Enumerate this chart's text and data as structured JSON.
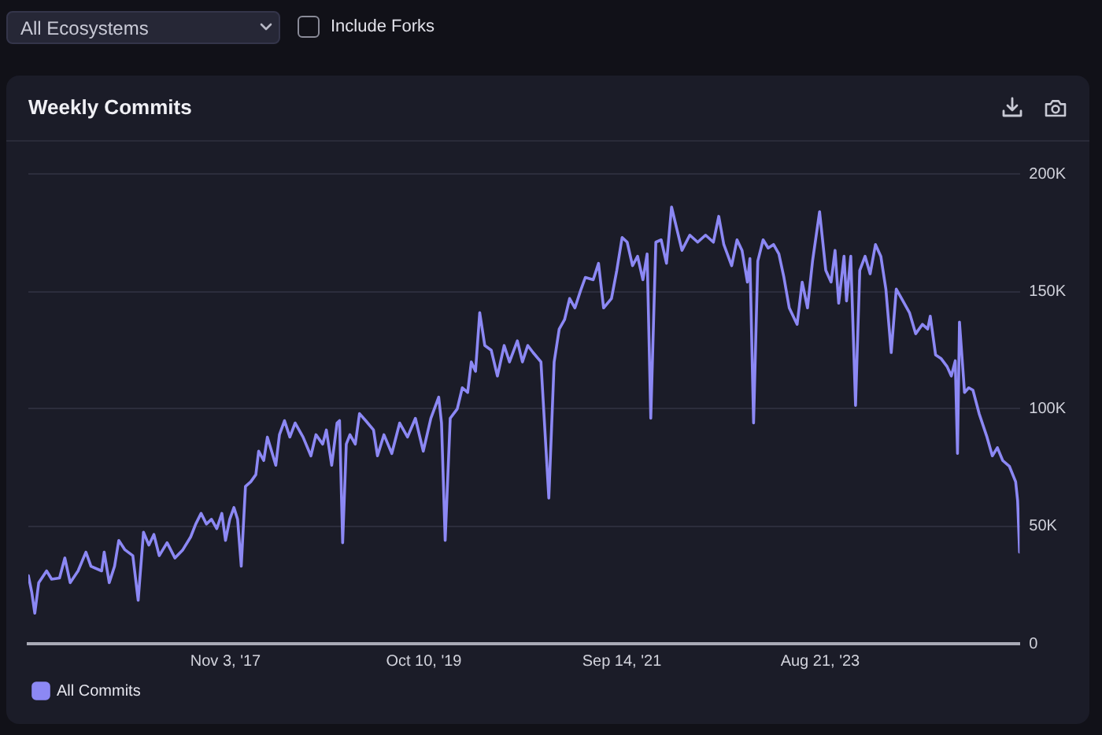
{
  "chart_data": {
    "type": "line",
    "title": "Weekly Commits",
    "annotations": [
      "All Ecosystems",
      "Include Forks"
    ],
    "x": [
      "2015-12-02",
      "2015-12-14",
      "2015-12-25",
      "2016-01-08",
      "2016-02-05",
      "2016-02-23",
      "2016-03-22",
      "2016-04-10",
      "2016-04-29",
      "2016-05-27",
      "2016-06-24",
      "2016-07-12",
      "2016-08-19",
      "2016-08-28",
      "2016-09-15",
      "2016-10-04",
      "2016-10-19",
      "2016-11-10",
      "2016-12-08",
      "2016-12-27",
      "2017-01-15",
      "2017-02-03",
      "2017-02-21",
      "2017-03-12",
      "2017-04-09",
      "2017-05-07",
      "2017-06-04",
      "2017-07-02",
      "2017-07-20",
      "2017-08-08",
      "2017-08-27",
      "2017-09-14",
      "2017-10-03",
      "2017-10-21",
      "2017-11-03",
      "2017-11-18",
      "2017-12-03",
      "2017-12-16",
      "2017-12-29",
      "2018-01-13",
      "2018-02-01",
      "2018-02-19",
      "2018-03-01",
      "2018-03-19",
      "2018-04-01",
      "2018-04-16",
      "2018-05-01",
      "2018-05-14",
      "2018-06-01",
      "2018-06-20",
      "2018-07-09",
      "2018-08-06",
      "2018-09-03",
      "2018-09-21",
      "2018-10-15",
      "2018-10-28",
      "2018-11-16",
      "2018-12-05",
      "2018-12-14",
      "2018-12-25",
      "2019-01-07",
      "2019-01-20",
      "2019-02-08",
      "2019-02-23",
      "2019-03-17",
      "2019-04-14",
      "2019-04-28",
      "2019-05-21",
      "2019-06-18",
      "2019-07-16",
      "2019-08-13",
      "2019-09-10",
      "2019-10-08",
      "2019-11-04",
      "2019-12-02",
      "2019-12-12",
      "2019-12-25",
      "2020-01-12",
      "2020-02-06",
      "2020-02-24",
      "2020-03-14",
      "2020-03-27",
      "2020-04-11",
      "2020-04-26",
      "2020-05-14",
      "2020-06-06",
      "2020-06-28",
      "2020-07-22",
      "2020-08-10",
      "2020-09-07",
      "2020-09-25",
      "2020-10-14",
      "2020-11-02",
      "2020-11-30",
      "2020-12-28",
      "2021-01-16",
      "2021-02-03",
      "2021-02-22",
      "2021-03-12",
      "2021-03-31",
      "2021-04-19",
      "2021-05-07",
      "2021-06-04",
      "2021-06-23",
      "2021-07-11",
      "2021-08-08",
      "2021-08-27",
      "2021-09-15",
      "2021-10-03",
      "2021-10-22",
      "2021-11-09",
      "2021-11-28",
      "2021-12-13",
      "2021-12-26",
      "2022-01-13",
      "2022-02-01",
      "2022-02-20",
      "2022-03-10",
      "2022-03-29",
      "2022-04-16",
      "2022-05-14",
      "2022-06-11",
      "2022-07-09",
      "2022-08-06",
      "2022-08-25",
      "2022-09-12",
      "2022-10-10",
      "2022-10-29",
      "2022-11-16",
      "2022-12-05",
      "2022-12-14",
      "2022-12-27",
      "2023-01-11",
      "2023-01-30",
      "2023-02-17",
      "2023-03-08",
      "2023-03-27",
      "2023-04-14",
      "2023-05-03",
      "2023-05-31",
      "2023-06-18",
      "2023-07-07",
      "2023-07-25",
      "2023-08-19",
      "2023-09-10",
      "2023-09-29",
      "2023-10-13",
      "2023-10-26",
      "2023-11-14",
      "2023-11-23",
      "2023-12-08",
      "2023-12-25",
      "2024-01-09",
      "2024-01-28",
      "2024-02-15",
      "2024-03-05",
      "2024-03-24",
      "2024-04-11",
      "2024-04-30",
      "2024-05-18",
      "2024-06-06",
      "2024-07-04",
      "2024-07-26",
      "2024-08-19",
      "2024-09-07",
      "2024-09-16",
      "2024-10-05",
      "2024-10-24",
      "2024-11-15",
      "2024-11-30",
      "2024-12-14",
      "2024-12-22",
      "2024-12-29",
      "2025-01-16",
      "2025-01-31",
      "2025-02-15",
      "2025-03-09",
      "2025-04-06",
      "2025-04-25",
      "2025-05-13",
      "2025-06-01",
      "2025-06-25",
      "2025-07-17",
      "2025-07-24",
      "2025-07-31"
    ],
    "series": [
      {
        "name": "All Commits",
        "color": "#8c88f4",
        "values": [
          29000,
          22000,
          13000,
          26000,
          31000,
          27500,
          28000,
          36500,
          26000,
          31000,
          39000,
          33000,
          31000,
          39000,
          26000,
          33000,
          44000,
          40000,
          37500,
          18500,
          47500,
          42000,
          46500,
          37500,
          43000,
          36500,
          40000,
          45500,
          51000,
          55500,
          51000,
          53000,
          49000,
          55500,
          44000,
          53000,
          58000,
          53000,
          33000,
          67000,
          69000,
          72000,
          82000,
          78000,
          88000,
          82000,
          76000,
          89000,
          95000,
          88000,
          94000,
          88000,
          80000,
          89000,
          85000,
          91000,
          76000,
          94000,
          95000,
          43000,
          85000,
          89000,
          85000,
          98000,
          95000,
          91000,
          80000,
          89000,
          81000,
          94000,
          88000,
          96000,
          82000,
          96000,
          105000,
          94000,
          44000,
          96000,
          100000,
          109000,
          107000,
          120000,
          116000,
          141000,
          127000,
          125000,
          114000,
          127000,
          120000,
          129000,
          120000,
          127000,
          124000,
          120000,
          62000,
          120000,
          134000,
          138000,
          147000,
          143000,
          150000,
          156000,
          155000,
          162000,
          143000,
          147000,
          159000,
          173000,
          171000,
          161000,
          165000,
          155000,
          166000,
          96000,
          171000,
          172000,
          162000,
          186000,
          176500,
          167500,
          174000,
          171000,
          174000,
          171000,
          182000,
          170000,
          161000,
          172000,
          167500,
          154000,
          164000,
          94000,
          163000,
          172000,
          168500,
          170000,
          166000,
          156000,
          143000,
          136000,
          154000,
          143000,
          163000,
          184000,
          159000,
          154000,
          167500,
          145000,
          165000,
          146000,
          165000,
          101500,
          159000,
          165000,
          157500,
          170000,
          165000,
          151000,
          124000,
          151000,
          147000,
          141000,
          132000,
          136000,
          134000,
          139500,
          123000,
          121500,
          118000,
          114000,
          120500,
          81000,
          137000,
          107000,
          109000,
          108000,
          98000,
          88000,
          80000,
          83500,
          78000,
          75500,
          69000,
          61000,
          39000
        ]
      }
    ],
    "xlim": [
      "2015-12-02",
      "2025-07-31"
    ],
    "xticks": [
      {
        "value": "2017-11-03",
        "label": "Nov 3, '17"
      },
      {
        "value": "2019-10-10",
        "label": "Oct 10, '19"
      },
      {
        "value": "2021-09-14",
        "label": "Sep 14, '21"
      },
      {
        "value": "2023-08-21",
        "label": "Aug 21, '23"
      }
    ],
    "ylim": [
      0,
      200000
    ],
    "yticks": [
      0,
      {
        "value": 50000,
        "label": "50K"
      },
      {
        "value": 100000,
        "label": "100K"
      },
      {
        "value": 150000,
        "label": "150K"
      },
      {
        "value": 200000,
        "label": "200K"
      }
    ],
    "grid": "y",
    "legend": "bottom left",
    "marker": "none",
    "line_style": "solid"
  }
}
